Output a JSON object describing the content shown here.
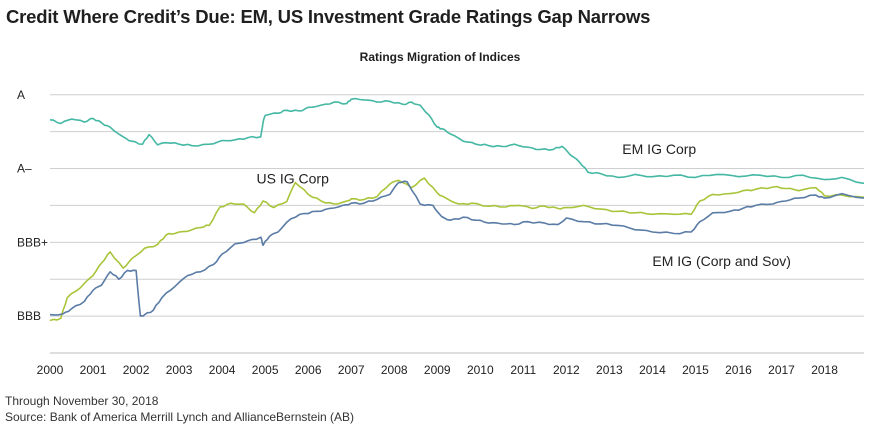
{
  "title": "Credit Where Credit’s Due: EM, US Investment Grade Ratings Gap Narrows",
  "footnote": "Through November 30, 2018",
  "source": "Source: Bank of America Merrill Lynch and AllianceBernstein (AB)",
  "chart_data": {
    "type": "line",
    "title": "Ratings Migration of Indices",
    "xlabel": "",
    "ylabel": "",
    "x_ticks": [
      "2000",
      "2001",
      "2002",
      "2003",
      "2004",
      "2005",
      "2006",
      "2007",
      "2008",
      "2009",
      "2010",
      "2011",
      "2012",
      "2013",
      "2014",
      "2015",
      "2016",
      "2017",
      "2018"
    ],
    "xlim": [
      2000.0,
      2018.917
    ],
    "y_ticks": [
      {
        "label": "A",
        "value": 6
      },
      {
        "label": "A–",
        "value": 5
      },
      {
        "label": "BBB+",
        "value": 4
      },
      {
        "label": "BBB",
        "value": 3
      }
    ],
    "ylim": [
      2.5,
      6.2
    ],
    "grid": "horizontal",
    "colors": {
      "em_ig_corp": "#45b8a4",
      "us_ig_corp": "#a8c53a",
      "em_ig_corp_sov": "#5a7ca6"
    },
    "series": [
      {
        "name": "EM IG Corp",
        "x": [
          2000.0,
          2000.25,
          2000.5,
          2000.8,
          2001.0,
          2001.2,
          2001.4,
          2001.7,
          2001.9,
          2002.15,
          2002.3,
          2002.5,
          2002.7,
          2003.0,
          2003.3,
          2003.7,
          2004.0,
          2004.3,
          2004.6,
          2004.9,
          2004.95,
          2005.0,
          2005.3,
          2005.5,
          2005.8,
          2006.0,
          2006.3,
          2006.6,
          2006.9,
          2007.0,
          2007.3,
          2007.6,
          2007.9,
          2008.2,
          2008.4,
          2008.6,
          2008.8,
          2009.0,
          2009.1,
          2009.3,
          2009.6,
          2009.9,
          2010.2,
          2010.5,
          2010.8,
          2011.1,
          2011.4,
          2011.7,
          2011.9,
          2012.1,
          2012.3,
          2012.5,
          2012.8,
          2013.2,
          2013.6,
          2014.0,
          2014.5,
          2015.0,
          2015.5,
          2016.0,
          2016.5,
          2017.0,
          2017.5,
          2018.0,
          2018.4,
          2018.917
        ],
        "values": [
          5.66,
          5.61,
          5.67,
          5.63,
          5.68,
          5.62,
          5.56,
          5.43,
          5.37,
          5.33,
          5.46,
          5.32,
          5.35,
          5.33,
          5.31,
          5.33,
          5.38,
          5.39,
          5.42,
          5.43,
          5.62,
          5.72,
          5.75,
          5.79,
          5.78,
          5.83,
          5.86,
          5.9,
          5.88,
          5.94,
          5.93,
          5.9,
          5.91,
          5.87,
          5.9,
          5.86,
          5.73,
          5.56,
          5.54,
          5.47,
          5.37,
          5.33,
          5.31,
          5.3,
          5.33,
          5.29,
          5.26,
          5.26,
          5.3,
          5.18,
          5.09,
          4.95,
          4.93,
          4.88,
          4.92,
          4.89,
          4.91,
          4.88,
          4.92,
          4.89,
          4.91,
          4.88,
          4.91,
          4.85,
          4.88,
          4.8
        ]
      },
      {
        "name": "US IG Corp",
        "x": [
          2000.0,
          2000.25,
          2000.4,
          2000.7,
          2001.0,
          2001.2,
          2001.4,
          2001.7,
          2001.9,
          2002.2,
          2002.5,
          2002.7,
          2002.9,
          2003.2,
          2003.5,
          2003.7,
          2003.95,
          2004.2,
          2004.5,
          2004.75,
          2004.95,
          2005.2,
          2005.5,
          2005.7,
          2006.0,
          2006.3,
          2006.6,
          2006.9,
          2007.0,
          2007.3,
          2007.6,
          2007.9,
          2008.1,
          2008.4,
          2008.7,
          2009.0,
          2009.2,
          2009.5,
          2009.8,
          2010.2,
          2010.6,
          2010.9,
          2011.2,
          2011.5,
          2011.8,
          2012.0,
          2012.4,
          2012.8,
          2013.2,
          2013.6,
          2014.0,
          2014.5,
          2014.9,
          2015.1,
          2015.4,
          2015.8,
          2016.1,
          2016.4,
          2016.8,
          2017.1,
          2017.4,
          2017.8,
          2018.0,
          2018.4,
          2018.917
        ],
        "values": [
          2.94,
          2.97,
          3.25,
          3.38,
          3.55,
          3.72,
          3.87,
          3.65,
          3.78,
          3.92,
          3.97,
          4.1,
          4.12,
          4.15,
          4.2,
          4.23,
          4.48,
          4.53,
          4.52,
          4.4,
          4.56,
          4.47,
          4.55,
          4.81,
          4.65,
          4.56,
          4.52,
          4.56,
          4.59,
          4.58,
          4.62,
          4.79,
          4.84,
          4.74,
          4.87,
          4.67,
          4.6,
          4.52,
          4.53,
          4.49,
          4.48,
          4.5,
          4.46,
          4.49,
          4.46,
          4.47,
          4.5,
          4.45,
          4.42,
          4.4,
          4.38,
          4.38,
          4.38,
          4.56,
          4.65,
          4.66,
          4.7,
          4.72,
          4.75,
          4.73,
          4.7,
          4.74,
          4.63,
          4.64,
          4.61
        ]
      },
      {
        "name": "EM IG (Corp and Sov)",
        "x": [
          2000.0,
          2000.3,
          2000.5,
          2000.8,
          2001.0,
          2001.2,
          2001.4,
          2001.6,
          2001.8,
          2002.0,
          2002.1,
          2002.2,
          2002.4,
          2002.6,
          2002.9,
          2003.2,
          2003.5,
          2003.8,
          2004.0,
          2004.3,
          2004.6,
          2004.9,
          2004.95,
          2005.1,
          2005.3,
          2005.6,
          2005.9,
          2006.2,
          2006.5,
          2006.8,
          2007.0,
          2007.3,
          2007.6,
          2007.9,
          2008.1,
          2008.3,
          2008.6,
          2008.9,
          2009.1,
          2009.3,
          2009.6,
          2009.9,
          2010.2,
          2010.5,
          2010.8,
          2011.1,
          2011.5,
          2011.8,
          2012.0,
          2012.4,
          2012.8,
          2013.2,
          2013.6,
          2014.0,
          2014.5,
          2014.9,
          2015.1,
          2015.4,
          2015.8,
          2016.1,
          2016.4,
          2016.8,
          2017.1,
          2017.4,
          2017.8,
          2018.0,
          2018.4,
          2018.917
        ],
        "values": [
          3.02,
          3.03,
          3.1,
          3.2,
          3.35,
          3.42,
          3.6,
          3.5,
          3.62,
          3.62,
          3.0,
          3.02,
          3.08,
          3.25,
          3.4,
          3.55,
          3.6,
          3.7,
          3.84,
          3.98,
          4.02,
          4.07,
          3.96,
          4.08,
          4.14,
          4.32,
          4.39,
          4.42,
          4.46,
          4.5,
          4.53,
          4.53,
          4.58,
          4.65,
          4.81,
          4.82,
          4.52,
          4.5,
          4.35,
          4.3,
          4.34,
          4.3,
          4.26,
          4.25,
          4.24,
          4.28,
          4.26,
          4.24,
          4.33,
          4.28,
          4.25,
          4.23,
          4.17,
          4.14,
          4.12,
          4.14,
          4.28,
          4.4,
          4.42,
          4.46,
          4.5,
          4.52,
          4.56,
          4.6,
          4.64,
          4.6,
          4.66,
          4.6
        ]
      }
    ],
    "annotations": [
      {
        "text": "EM IG Corp",
        "x": 2013.3,
        "y": 5.2
      },
      {
        "text": "US IG Corp",
        "x": 2004.8,
        "y": 4.8
      },
      {
        "text": "EM IG (Corp and Sov)",
        "x": 2014.0,
        "y": 3.68
      }
    ]
  }
}
